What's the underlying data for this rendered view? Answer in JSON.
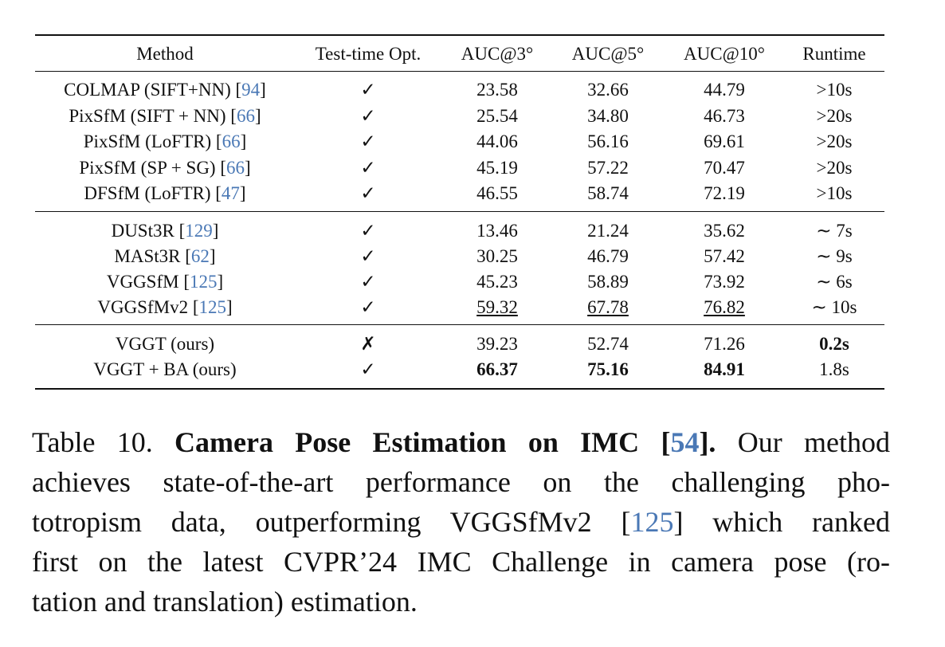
{
  "table": {
    "columns": [
      "Method",
      "Test-time Opt.",
      "AUC@3°",
      "AUC@5°",
      "AUC@10°",
      "Runtime"
    ],
    "groups": [
      [
        {
          "method": {
            "text": "COLMAP (SIFT+NN) [",
            "ref": "94",
            "end": "]"
          },
          "opt": "✓",
          "values": [
            "23.58",
            "32.66",
            "44.79"
          ],
          "runtime": ">10s"
        },
        {
          "method": {
            "text": "PixSfM (SIFT + NN) [",
            "ref": "66",
            "end": "]"
          },
          "opt": "✓",
          "values": [
            "25.54",
            "34.80",
            "46.73"
          ],
          "runtime": ">20s"
        },
        {
          "method": {
            "text": "PixSfM (LoFTR) [",
            "ref": "66",
            "end": "]"
          },
          "opt": "✓",
          "values": [
            "44.06",
            "56.16",
            "69.61"
          ],
          "runtime": ">20s"
        },
        {
          "method": {
            "text": "PixSfM (SP + SG) [",
            "ref": "66",
            "end": "]"
          },
          "opt": "✓",
          "values": [
            "45.19",
            "57.22",
            "70.47"
          ],
          "runtime": ">20s"
        },
        {
          "method": {
            "text": "DFSfM (LoFTR) [",
            "ref": "47",
            "end": "]"
          },
          "opt": "✓",
          "values": [
            "46.55",
            "58.74",
            "72.19"
          ],
          "runtime": ">10s"
        }
      ],
      [
        {
          "method": {
            "text": "DUSt3R [",
            "ref": "129",
            "end": "]"
          },
          "opt": "✓",
          "values": [
            "13.46",
            "21.24",
            "35.62"
          ],
          "runtime": "∼ 7s"
        },
        {
          "method": {
            "text": "MASt3R [",
            "ref": "62",
            "end": "]"
          },
          "opt": "✓",
          "values": [
            "30.25",
            "46.79",
            "57.42"
          ],
          "runtime": "∼ 9s"
        },
        {
          "method": {
            "text": "VGGSfM [",
            "ref": "125",
            "end": "]"
          },
          "opt": "✓",
          "values": [
            "45.23",
            "58.89",
            "73.92"
          ],
          "runtime": "∼ 6s"
        },
        {
          "method": {
            "text": "VGGSfMv2 [",
            "ref": "125",
            "end": "]"
          },
          "opt": "✓",
          "values": [
            "59.32",
            "67.78",
            "76.82"
          ],
          "runtime": "∼ 10s",
          "values_style": "underline"
        }
      ],
      [
        {
          "method": {
            "text": "VGGT (ours)"
          },
          "opt": "✗",
          "values": [
            "39.23",
            "52.74",
            "71.26"
          ],
          "runtime": "0.2s",
          "runtime_style": "bold"
        },
        {
          "method": {
            "text": "VGGT + BA (ours)"
          },
          "opt": "✓",
          "values": [
            "66.37",
            "75.16",
            "84.91"
          ],
          "runtime": "1.8s",
          "values_style": "bold"
        }
      ]
    ]
  },
  "caption": {
    "lines": [
      [
        {
          "text": "Table 10. "
        },
        {
          "text": "Camera Pose Estimation on IMC [",
          "bold": true
        },
        {
          "text": "54",
          "bold": true,
          "link": true
        },
        {
          "text": "].",
          "bold": true
        },
        {
          "text": " Our method"
        }
      ],
      [
        {
          "text": "achieves state-of-the-art performance on the challenging pho-"
        }
      ],
      [
        {
          "text": "totropism data, outperforming VGGSfMv2 ["
        },
        {
          "text": "125",
          "link": true
        },
        {
          "text": "] which ranked"
        }
      ],
      [
        {
          "text": "first on the latest CVPR’24 IMC Challenge in camera pose (ro-"
        }
      ],
      [
        {
          "text": "tation and translation) estimation."
        }
      ]
    ]
  }
}
